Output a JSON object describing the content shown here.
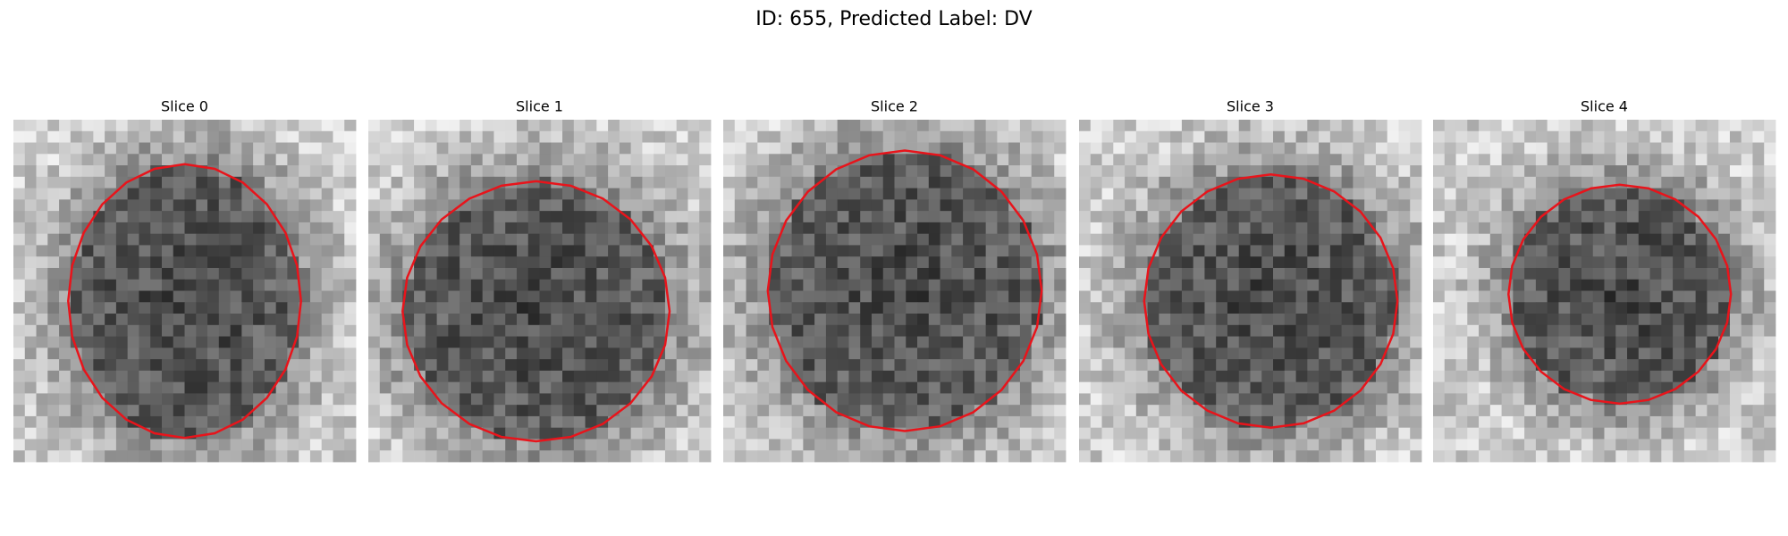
{
  "title": "ID: 655, Predicted Label: DV",
  "panels": [
    {
      "title": "Slice 0"
    },
    {
      "title": "Slice 1"
    },
    {
      "title": "Slice 2"
    },
    {
      "title": "Slice 3"
    },
    {
      "title": "Slice 4"
    }
  ]
}
